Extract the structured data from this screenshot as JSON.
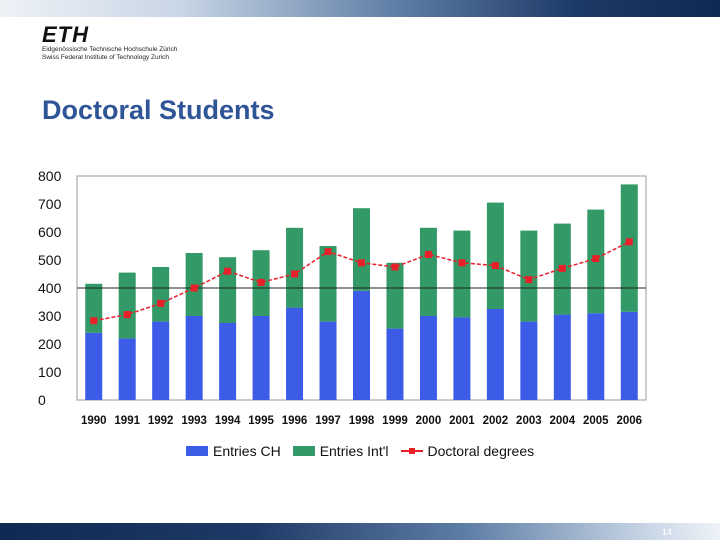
{
  "header": {
    "logo_mark": "ETH",
    "logo_line1": "Eidgenössische Technische Hochschule Zürich",
    "logo_line2": "Swiss Federal Institute of Technology Zurich"
  },
  "slide": {
    "title": "Doctoral Students",
    "page_number": "14"
  },
  "colors": {
    "entries_ch": "#3c5ce8",
    "entries_intl": "#339966",
    "doctoral_degrees": "#e8202a",
    "title": "#2f5597"
  },
  "chart_data": {
    "type": "bar",
    "stacked": true,
    "categories": [
      "1990",
      "1991",
      "1992",
      "1993",
      "1994",
      "1995",
      "1996",
      "1997",
      "1998",
      "1999",
      "2000",
      "2001",
      "2002",
      "2003",
      "2004",
      "2005",
      "2006"
    ],
    "series": [
      {
        "name": "Entries CH",
        "kind": "bar",
        "values": [
          240,
          220,
          280,
          300,
          275,
          300,
          330,
          280,
          390,
          255,
          300,
          295,
          325,
          280,
          305,
          310,
          315
        ]
      },
      {
        "name": "Entries Int'l",
        "kind": "bar",
        "values": [
          175,
          235,
          195,
          225,
          235,
          235,
          285,
          270,
          295,
          235,
          315,
          310,
          380,
          325,
          325,
          370,
          455
        ]
      },
      {
        "name": "Doctoral degrees",
        "kind": "line",
        "values": [
          283,
          305,
          345,
          400,
          460,
          420,
          450,
          530,
          490,
          475,
          520,
          490,
          480,
          430,
          470,
          505,
          565
        ]
      }
    ],
    "ylim": [
      0,
      800
    ],
    "yticks": [
      0,
      100,
      200,
      300,
      400,
      500,
      600,
      700,
      800
    ],
    "grid": false,
    "reference_line": 400,
    "legend_position": "bottom"
  }
}
